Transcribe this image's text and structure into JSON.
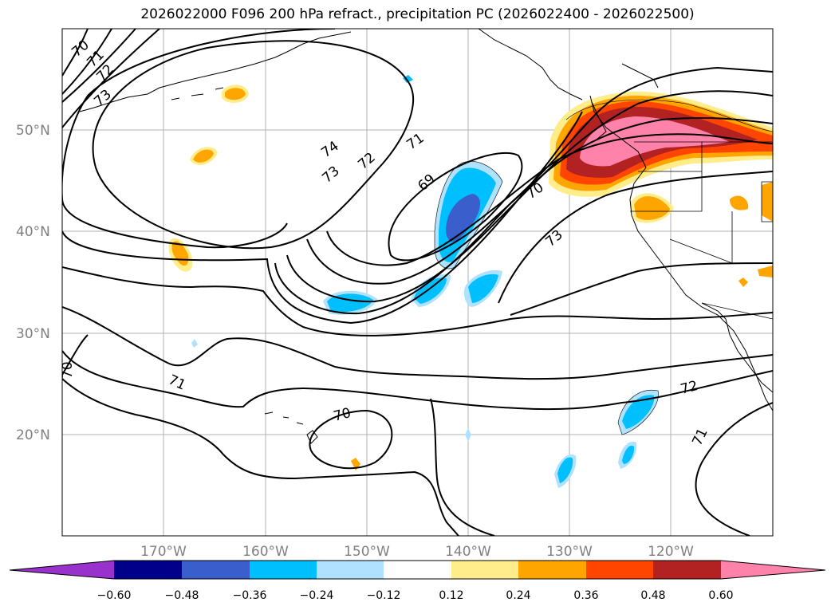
{
  "title": "2026022000 F096 200 hPa refract., precipitation PC (2026022400 - 2026022500)",
  "map": {
    "lat_labels": [
      "50°N",
      "40°N",
      "30°N",
      "20°N"
    ],
    "lon_labels": [
      "170°W",
      "160°W",
      "150°W",
      "140°W",
      "130°W",
      "120°W"
    ],
    "contour_labels": [
      "70",
      "71",
      "72",
      "73",
      "74",
      "73",
      "72",
      "71",
      "69",
      "70",
      "73",
      "71",
      "70",
      "72",
      "71",
      "70"
    ]
  },
  "colorbar": {
    "ticks": [
      "−0.60",
      "−0.48",
      "−0.36",
      "−0.24",
      "−0.12",
      "0.12",
      "0.24",
      "0.36",
      "0.48",
      "0.60"
    ],
    "colors": [
      "#9932cc",
      "#00008b",
      "#3a5fcd",
      "#00bfff",
      "#b0e2ff",
      "#ffffff",
      "#ffec8b",
      "#ffa500",
      "#ff4500",
      "#b22222",
      "#ff82ab",
      "#ff82ab"
    ]
  }
}
